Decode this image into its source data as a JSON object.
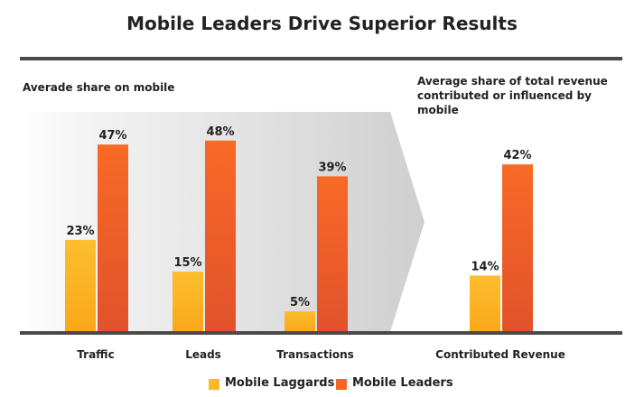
{
  "title": "Mobile Leaders Drive Superior Results",
  "left_label": "Averade share on mobile",
  "right_label": "Average share of total revenue contributed or influenced by mobile",
  "colors": {
    "laggards": "#FDB827",
    "leaders": "#F26522",
    "axis": "#4a4a4a"
  },
  "chart_data": {
    "type": "bar",
    "categories": [
      "Traffic",
      "Leads",
      "Transactions",
      "Contributed Revenue"
    ],
    "series": [
      {
        "name": "Mobile Laggards",
        "values": [
          23,
          15,
          5,
          14
        ],
        "labels": [
          "23%",
          "15%",
          "5%",
          "14%"
        ]
      },
      {
        "name": "Mobile Leaders",
        "values": [
          47,
          48,
          39,
          42
        ],
        "labels": [
          "47%",
          "48%",
          "39%",
          "42%"
        ]
      }
    ],
    "ylim": [
      0,
      50
    ],
    "legend_position": "bottom"
  },
  "legend": {
    "laggards": "Mobile Laggards",
    "leaders": "Mobile Leaders"
  }
}
